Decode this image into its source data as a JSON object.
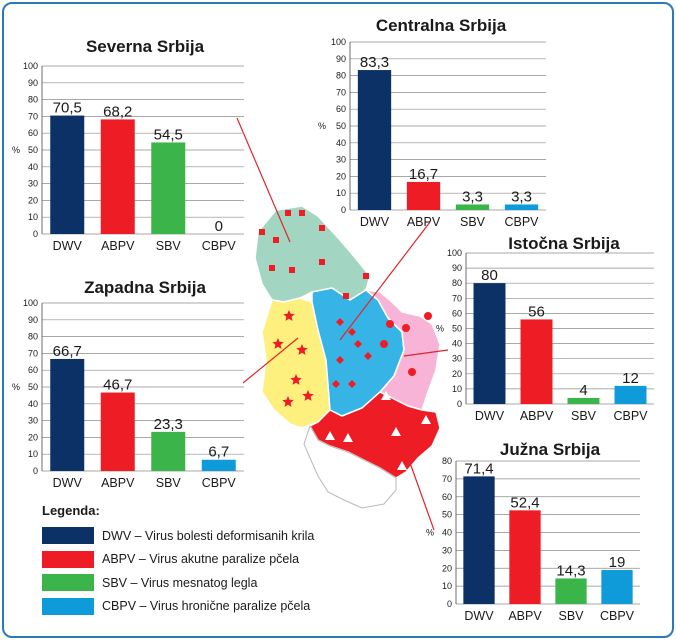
{
  "colors": {
    "DWV": "#0b3166",
    "ABPV": "#ee1c25",
    "SBV": "#3bb54a",
    "CBPV": "#0f9ad9",
    "border": "#2a7ab8",
    "region_north": "#a3d6c2",
    "region_west": "#fdf07e",
    "region_central": "#36b4e5",
    "region_east": "#f8b4d6",
    "region_south": "#ee1c25",
    "region_other": "#ffffff"
  },
  "legend": {
    "title": "Legenda:",
    "items": [
      {
        "key": "DWV",
        "text": "DWV – Virus bolesti deformisanih krila"
      },
      {
        "key": "ABPV",
        "text": "ABPV – Virus akutne paralize pčela"
      },
      {
        "key": "SBV",
        "text": "SBV – Virus mesnatog legla"
      },
      {
        "key": "CBPV",
        "text": "CBPV – Virus hronične paralize pčela"
      }
    ]
  },
  "chart_data": [
    {
      "type": "bar",
      "title": "Severna Srbija",
      "ylabel": "%",
      "ylim": [
        0,
        100
      ],
      "yticks": [
        0,
        10,
        20,
        30,
        40,
        50,
        60,
        70,
        80,
        90,
        100
      ],
      "categories": [
        "DWV",
        "ABPV",
        "SBV",
        "CBPV"
      ],
      "values": [
        70.5,
        68.2,
        54.5,
        0
      ],
      "value_labels": [
        "70,5",
        "68,2",
        "54,5",
        "0"
      ]
    },
    {
      "type": "bar",
      "title": "Centralna Srbija",
      "ylabel": "%",
      "ylim": [
        0,
        100
      ],
      "yticks": [
        0,
        10,
        20,
        30,
        40,
        50,
        60,
        70,
        80,
        90,
        100
      ],
      "categories": [
        "DWV",
        "ABPV",
        "SBV",
        "CBPV"
      ],
      "values": [
        83.3,
        16.7,
        3.3,
        3.3
      ],
      "value_labels": [
        "83,3",
        "16,7",
        "3,3",
        "3,3"
      ]
    },
    {
      "type": "bar",
      "title": "Zapadna Srbija",
      "ylabel": "%",
      "ylim": [
        0,
        100
      ],
      "yticks": [
        0,
        10,
        20,
        30,
        40,
        50,
        60,
        70,
        80,
        90,
        100
      ],
      "categories": [
        "DWV",
        "ABPV",
        "SBV",
        "CBPV"
      ],
      "values": [
        66.7,
        46.7,
        23.3,
        6.7
      ],
      "value_labels": [
        "66,7",
        "46,7",
        "23,3",
        "6,7"
      ]
    },
    {
      "type": "bar",
      "title": "Istočna Srbija",
      "ylabel": "%",
      "ylim": [
        0,
        100
      ],
      "yticks": [
        0,
        10,
        20,
        30,
        40,
        50,
        60,
        70,
        80,
        90,
        100
      ],
      "categories": [
        "DWV",
        "ABPV",
        "SBV",
        "CBPV"
      ],
      "values": [
        80,
        56,
        4,
        12
      ],
      "value_labels": [
        "80",
        "56",
        "4",
        "12"
      ]
    },
    {
      "type": "bar",
      "title": "Južna Srbija",
      "ylabel": "%",
      "ylim": [
        0,
        80
      ],
      "yticks": [
        0,
        10,
        20,
        30,
        40,
        50,
        60,
        70,
        80
      ],
      "categories": [
        "DWV",
        "ABPV",
        "SBV",
        "CBPV"
      ],
      "values": [
        71.4,
        52.4,
        14.3,
        19
      ],
      "value_labels": [
        "71,4",
        "52,4",
        "14,3",
        "19"
      ]
    }
  ]
}
